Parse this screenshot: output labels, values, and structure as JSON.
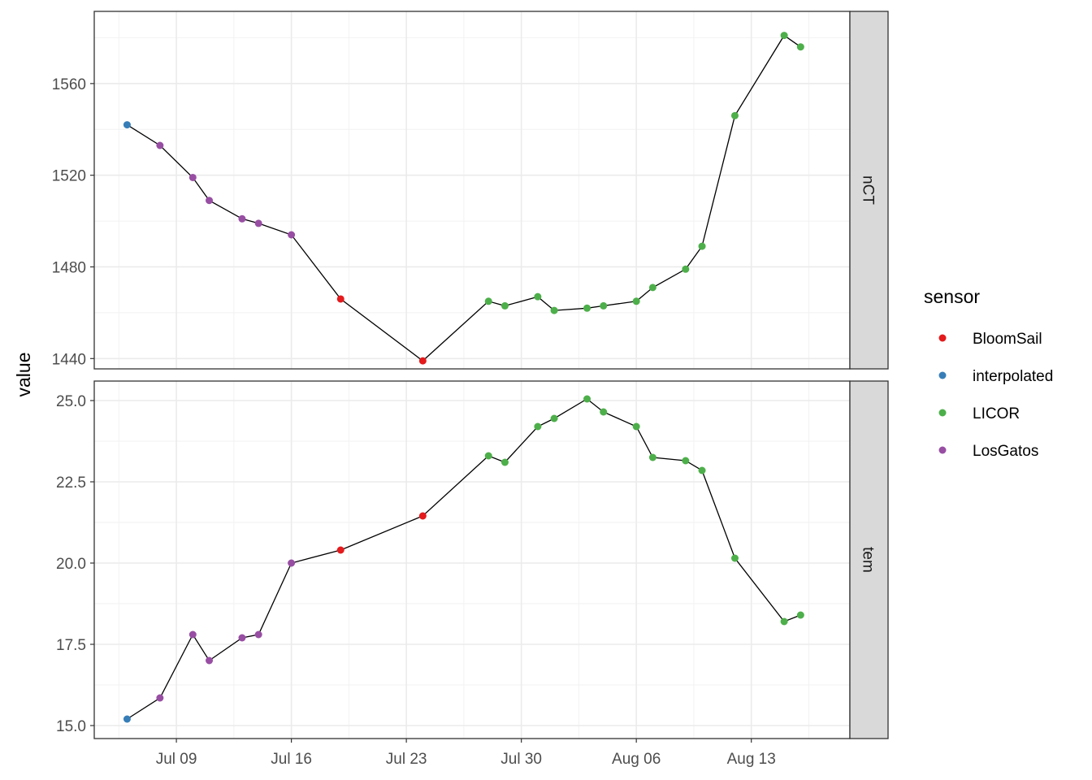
{
  "chart_data": {
    "type": "line",
    "facet_by": "variable",
    "x_type": "date",
    "x_ticks": [
      "2024-07-09",
      "2024-07-16",
      "2024-07-23",
      "2024-07-30",
      "2024-08-06",
      "2024-08-13"
    ],
    "x_tick_labels": [
      "Jul 09",
      "Jul 16",
      "Jul 23",
      "Jul 30",
      "Aug 06",
      "Aug 13"
    ],
    "xlim": [
      "2024-07-04",
      "2024-08-19"
    ],
    "ylabel": "value",
    "xlabel": "",
    "grid": true,
    "legend": {
      "title": "sensor",
      "position": "right",
      "entries": [
        {
          "label": "BloomSail",
          "color": "#e41a1c"
        },
        {
          "label": "interpolated",
          "color": "#377eb8"
        },
        {
          "label": "LICOR",
          "color": "#4daf4a"
        },
        {
          "label": "LosGatos",
          "color": "#984ea3"
        }
      ]
    },
    "panels": [
      {
        "strip": "nCT",
        "ylim": [
          1435.5,
          1591.5
        ],
        "y_ticks": [
          1440,
          1480,
          1520,
          1560
        ],
        "y_tick_labels": [
          "1440",
          "1480",
          "1520",
          "1560"
        ],
        "points": [
          {
            "x": "2024-07-06",
            "y": 1542,
            "sensor": "interpolated"
          },
          {
            "x": "2024-07-08",
            "y": 1533,
            "sensor": "LosGatos"
          },
          {
            "x": "2024-07-10",
            "y": 1519,
            "sensor": "LosGatos"
          },
          {
            "x": "2024-07-11",
            "y": 1509,
            "sensor": "LosGatos"
          },
          {
            "x": "2024-07-13",
            "y": 1501,
            "sensor": "LosGatos"
          },
          {
            "x": "2024-07-14",
            "y": 1499,
            "sensor": "LosGatos"
          },
          {
            "x": "2024-07-16",
            "y": 1494,
            "sensor": "LosGatos"
          },
          {
            "x": "2024-07-19",
            "y": 1466,
            "sensor": "BloomSail"
          },
          {
            "x": "2024-07-24",
            "y": 1439,
            "sensor": "BloomSail"
          },
          {
            "x": "2024-07-28",
            "y": 1465,
            "sensor": "LICOR"
          },
          {
            "x": "2024-07-29",
            "y": 1463,
            "sensor": "LICOR"
          },
          {
            "x": "2024-07-31",
            "y": 1467,
            "sensor": "LICOR"
          },
          {
            "x": "2024-08-01",
            "y": 1461,
            "sensor": "LICOR"
          },
          {
            "x": "2024-08-03",
            "y": 1462,
            "sensor": "LICOR"
          },
          {
            "x": "2024-08-04",
            "y": 1463,
            "sensor": "LICOR"
          },
          {
            "x": "2024-08-06",
            "y": 1465,
            "sensor": "LICOR"
          },
          {
            "x": "2024-08-07",
            "y": 1471,
            "sensor": "LICOR"
          },
          {
            "x": "2024-08-09",
            "y": 1479,
            "sensor": "LICOR"
          },
          {
            "x": "2024-08-10",
            "y": 1489,
            "sensor": "LICOR"
          },
          {
            "x": "2024-08-12",
            "y": 1546,
            "sensor": "LICOR"
          },
          {
            "x": "2024-08-15",
            "y": 1581,
            "sensor": "LICOR"
          },
          {
            "x": "2024-08-16",
            "y": 1576,
            "sensor": "LICOR"
          }
        ]
      },
      {
        "strip": "tem",
        "ylim": [
          14.6,
          25.6
        ],
        "y_ticks": [
          15.0,
          17.5,
          20.0,
          22.5,
          25.0
        ],
        "y_tick_labels": [
          "15.0",
          "17.5",
          "20.0",
          "22.5",
          "25.0"
        ],
        "points": [
          {
            "x": "2024-07-06",
            "y": 15.2,
            "sensor": "interpolated"
          },
          {
            "x": "2024-07-08",
            "y": 15.85,
            "sensor": "LosGatos"
          },
          {
            "x": "2024-07-10",
            "y": 17.8,
            "sensor": "LosGatos"
          },
          {
            "x": "2024-07-11",
            "y": 17.0,
            "sensor": "LosGatos"
          },
          {
            "x": "2024-07-13",
            "y": 17.7,
            "sensor": "LosGatos"
          },
          {
            "x": "2024-07-14",
            "y": 17.8,
            "sensor": "LosGatos"
          },
          {
            "x": "2024-07-16",
            "y": 20.0,
            "sensor": "LosGatos"
          },
          {
            "x": "2024-07-19",
            "y": 20.4,
            "sensor": "BloomSail"
          },
          {
            "x": "2024-07-24",
            "y": 21.45,
            "sensor": "BloomSail"
          },
          {
            "x": "2024-07-28",
            "y": 23.3,
            "sensor": "LICOR"
          },
          {
            "x": "2024-07-29",
            "y": 23.1,
            "sensor": "LICOR"
          },
          {
            "x": "2024-07-31",
            "y": 24.2,
            "sensor": "LICOR"
          },
          {
            "x": "2024-08-01",
            "y": 24.45,
            "sensor": "LICOR"
          },
          {
            "x": "2024-08-03",
            "y": 25.05,
            "sensor": "LICOR"
          },
          {
            "x": "2024-08-04",
            "y": 24.65,
            "sensor": "LICOR"
          },
          {
            "x": "2024-08-06",
            "y": 24.2,
            "sensor": "LICOR"
          },
          {
            "x": "2024-08-07",
            "y": 23.25,
            "sensor": "LICOR"
          },
          {
            "x": "2024-08-09",
            "y": 23.15,
            "sensor": "LICOR"
          },
          {
            "x": "2024-08-10",
            "y": 22.85,
            "sensor": "LICOR"
          },
          {
            "x": "2024-08-12",
            "y": 20.15,
            "sensor": "LICOR"
          },
          {
            "x": "2024-08-15",
            "y": 18.2,
            "sensor": "LICOR"
          },
          {
            "x": "2024-08-16",
            "y": 18.4,
            "sensor": "LICOR"
          }
        ]
      }
    ]
  }
}
